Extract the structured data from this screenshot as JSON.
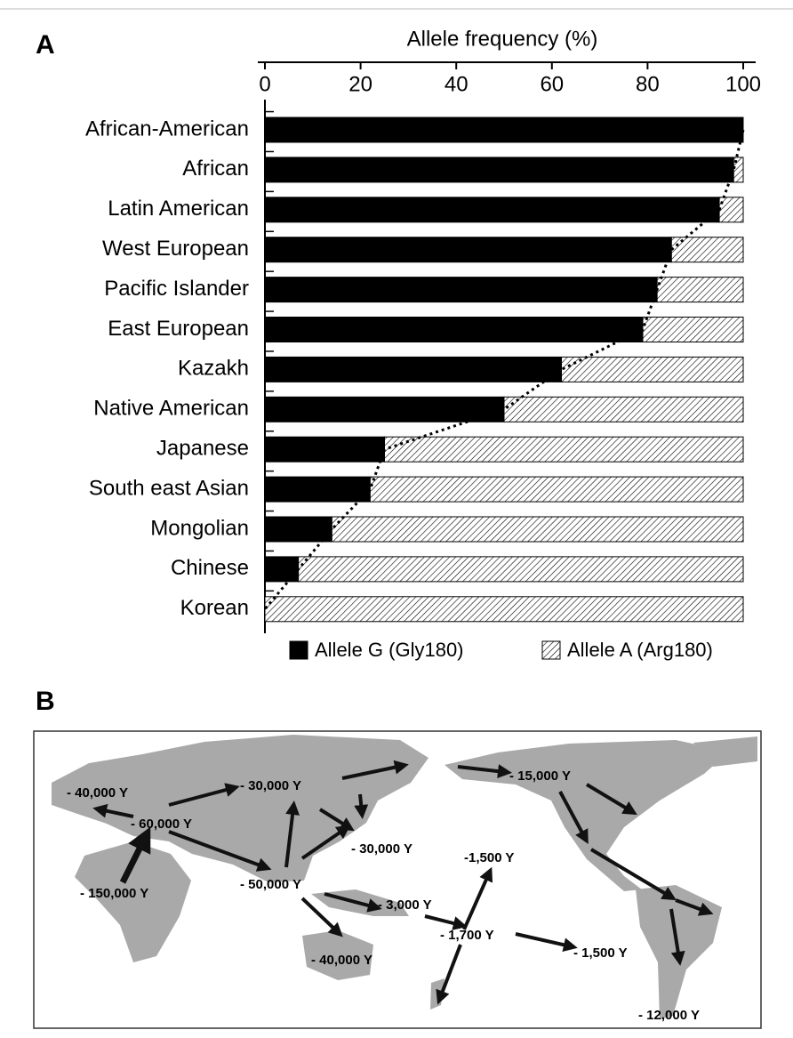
{
  "panels": {
    "a": "A",
    "b": "B"
  },
  "chart_data": {
    "type": "stacked-barh",
    "xlabel": "Allele frequency (%)",
    "categories": [
      "African-American",
      "African",
      "Latin American",
      "West European",
      "Pacific Islander",
      "East European",
      "Kazakh",
      "Native American",
      "Japanese",
      "South east Asian",
      "Mongolian",
      "Chinese",
      "Korean"
    ],
    "series": [
      {
        "name": "Allele G (Gly180)",
        "color": "#000000",
        "values": [
          100,
          98,
          95,
          85,
          82,
          79,
          62,
          50,
          25,
          22,
          14,
          7,
          0
        ]
      },
      {
        "name": "Allele A (Arg180)",
        "color": "#ffffff",
        "hatch": true,
        "values": [
          0,
          2,
          5,
          15,
          18,
          21,
          38,
          50,
          75,
          78,
          86,
          93,
          100
        ]
      }
    ],
    "xlim": [
      0,
      100
    ],
    "xticks": [
      0,
      20,
      40,
      60,
      80,
      100
    ],
    "trend_line": true
  },
  "map": {
    "labels": [
      "- 40,000 Y",
      "- 30,000 Y",
      "- 60,000 Y",
      "- 15,000 Y",
      "- 30,000 Y",
      "-1,500 Y",
      "- 150,000 Y",
      "- 50,000 Y",
      "- 3,000 Y",
      "- 1,700 Y",
      "- 1,500 Y",
      "- 40,000 Y",
      "- 12,000 Y"
    ]
  }
}
